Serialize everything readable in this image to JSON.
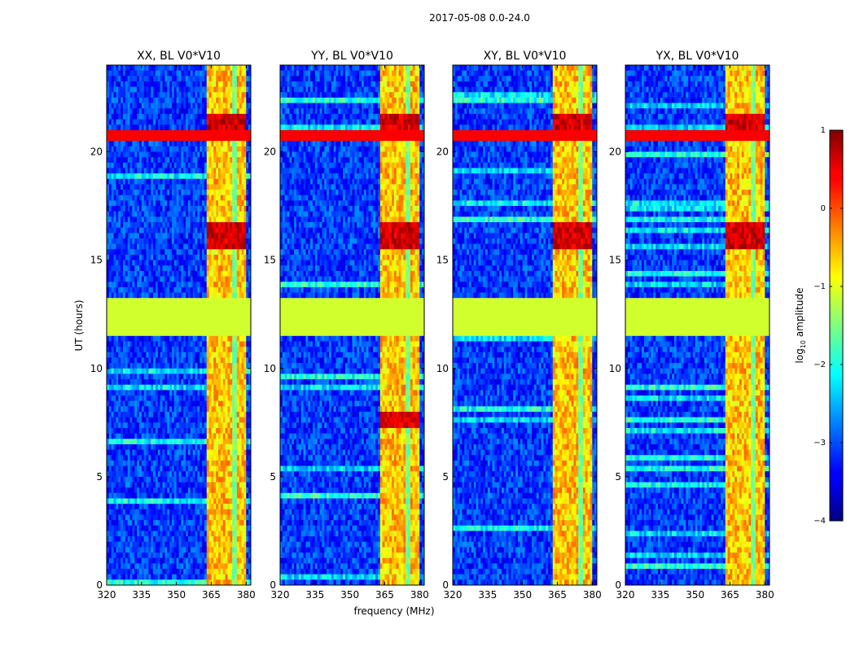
{
  "chart_data": {
    "type": "heatmap",
    "title": "2017-05-08 0.0-24.0",
    "xlabel": "frequency (MHz)",
    "ylabel": "UT (hours)",
    "xlim": [
      320,
      382
    ],
    "ylim": [
      0,
      24
    ],
    "x_ticks": [
      320,
      335,
      350,
      365,
      380
    ],
    "y_ticks": [
      0,
      5,
      10,
      15,
      20
    ],
    "panels": [
      {
        "title": "XX, BL V0*V10"
      },
      {
        "title": "YY, BL V0*V10"
      },
      {
        "title": "XY, BL V0*V10"
      },
      {
        "title": "YX, BL V0*V10"
      }
    ],
    "colorbar": {
      "label": "log10 amplitude",
      "label_main": "log",
      "label_sub": "10",
      "label_tail": " amplitude",
      "range": [
        -4,
        1
      ],
      "ticks": [
        "1",
        "0",
        "−1",
        "−2",
        "−3",
        "−4"
      ],
      "tick_values": [
        1,
        0,
        -1,
        -2,
        -3,
        -4
      ],
      "colormap": "jet"
    },
    "features": {
      "flagged_gap_ut": [
        11.6,
        13.3
      ],
      "flagged_gap_value": -1.1,
      "strong_band_mhz": [
        363.5,
        379.5
      ],
      "strong_band_gap_mhz": [
        374.0,
        376.0
      ],
      "saturated_rows_ut": [
        20.6,
        20.9
      ],
      "background_value": -3.1
    }
  }
}
